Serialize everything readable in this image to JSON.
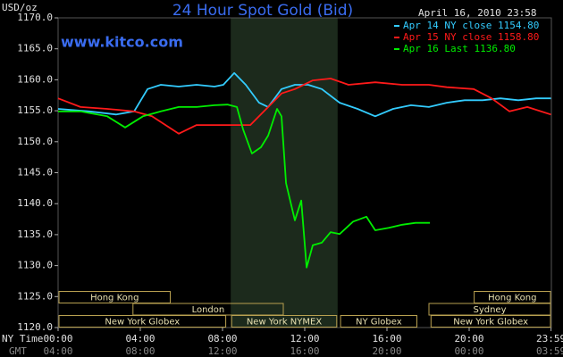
{
  "chart_data": {
    "type": "line",
    "title": "24 Hour Spot Gold (Bid)",
    "source": "www.kitco.com",
    "timestamp": "April 16, 2010 23:58",
    "y_label": "USD/oz",
    "x_label": "NY Time",
    "x2_label": "GMT",
    "xlim": [
      0,
      24
    ],
    "ylim": [
      1120,
      1170
    ],
    "xticks": [
      {
        "value": 0,
        "label": "00:00"
      },
      {
        "value": 4,
        "label": "04:00"
      },
      {
        "value": 8,
        "label": "08:00"
      },
      {
        "value": 12,
        "label": "12:00"
      },
      {
        "value": 16,
        "label": "16:00"
      },
      {
        "value": 20,
        "label": "20:00"
      },
      {
        "value": 23.983,
        "label": "23:59"
      }
    ],
    "x2tick_labels": [
      "04:00",
      "08:00",
      "12:00",
      "16:00",
      "20:00",
      "00:00",
      "03:59"
    ],
    "yticks": [
      {
        "value": 1120,
        "label": "1120.0"
      },
      {
        "value": 1125,
        "label": "1125.0"
      },
      {
        "value": 1130,
        "label": "1130.0"
      },
      {
        "value": 1135,
        "label": "1135.0"
      },
      {
        "value": 1140,
        "label": "1140.0"
      },
      {
        "value": 1145,
        "label": "1145.0"
      },
      {
        "value": 1150,
        "label": "1150.0"
      },
      {
        "value": 1155,
        "label": "1155.0"
      },
      {
        "value": 1160,
        "label": "1160.0"
      },
      {
        "value": 1165,
        "label": "1165.0"
      },
      {
        "value": 1170,
        "label": "1170.0"
      }
    ],
    "grid": false,
    "highlight_range": [
      8.4,
      13.6
    ],
    "highlight_color": "#1c2a1c",
    "legend": "top-right",
    "series": [
      {
        "name": "Apr 14 NY close 1154.80",
        "color": "#33ccff",
        "x": [
          0,
          1.52,
          2.83,
          3.7,
          4.35,
          5.0,
          5.87,
          6.74,
          7.61,
          8.04,
          8.57,
          9.13,
          9.78,
          10.22,
          10.87,
          11.52,
          12.17,
          12.83,
          13.7,
          14.57,
          15.43,
          16.3,
          17.17,
          18.04,
          18.91,
          19.78,
          20.65,
          21.52,
          22.39,
          23.26,
          23.98
        ],
        "values": [
          1155.3,
          1154.9,
          1154.4,
          1154.9,
          1158.5,
          1159.2,
          1158.9,
          1159.2,
          1158.9,
          1159.2,
          1161.1,
          1159.2,
          1156.3,
          1155.6,
          1158.5,
          1159.2,
          1159.2,
          1158.5,
          1156.3,
          1155.3,
          1154.1,
          1155.3,
          1155.9,
          1155.6,
          1156.3,
          1156.7,
          1156.7,
          1157.0,
          1156.7,
          1157.0,
          1157.0
        ]
      },
      {
        "name": "Apr 15 NY close 1158.80",
        "color": "#ff1a1a",
        "x": [
          0,
          1.09,
          2.39,
          3.7,
          4.57,
          5.87,
          6.74,
          7.61,
          8.48,
          9.35,
          10.22,
          10.87,
          11.52,
          12.39,
          13.26,
          14.13,
          15.43,
          16.74,
          18.04,
          18.91,
          20.22,
          21.09,
          21.96,
          22.83,
          23.98
        ],
        "values": [
          1157.0,
          1155.6,
          1155.3,
          1154.9,
          1154.1,
          1151.3,
          1152.7,
          1152.7,
          1152.7,
          1152.7,
          1155.6,
          1157.8,
          1158.5,
          1159.9,
          1160.2,
          1159.2,
          1159.6,
          1159.2,
          1159.2,
          1158.8,
          1158.5,
          1157.0,
          1154.9,
          1155.6,
          1154.4
        ]
      },
      {
        "name": "Apr 16 Last 1136.80",
        "color": "#00ee00",
        "x": [
          0,
          1.09,
          2.39,
          3.26,
          4.13,
          5.0,
          5.87,
          6.74,
          7.61,
          8.26,
          8.7,
          9.0,
          9.43,
          9.87,
          10.22,
          10.65,
          10.87,
          11.09,
          11.52,
          11.83,
          12.09,
          12.39,
          12.83,
          13.26,
          13.7,
          14.35,
          15.0,
          15.43,
          16.09,
          16.74,
          17.39,
          18.09
        ],
        "values": [
          1154.9,
          1154.9,
          1154.1,
          1152.3,
          1154.1,
          1154.9,
          1155.6,
          1155.6,
          1155.9,
          1156.0,
          1155.6,
          1152.0,
          1148.1,
          1149.1,
          1151.0,
          1155.3,
          1154.1,
          1143.3,
          1137.3,
          1140.5,
          1129.7,
          1133.3,
          1133.7,
          1135.4,
          1135.1,
          1137.1,
          1137.9,
          1135.7,
          1136.1,
          1136.6,
          1136.9,
          1136.9
        ]
      }
    ],
    "session_color": "#b8a050",
    "session_rows": [
      [
        {
          "name": "Hong Kong",
          "start": 0,
          "end": 5.5
        },
        {
          "name": "Hong Kong",
          "start": 20.2,
          "end": 24
        }
      ],
      [
        {
          "name": "London",
          "start": 3.6,
          "end": 11.0
        },
        {
          "name": "Sydney",
          "start": 18.0,
          "end": 24
        }
      ],
      [
        {
          "name": "New York Globex",
          "start": 0,
          "end": 8.2
        },
        {
          "name": "New York NYMEX",
          "start": 8.4,
          "end": 13.6
        },
        {
          "name": "NY Globex",
          "start": 13.7,
          "end": 17.5
        },
        {
          "name": "New York Globex",
          "start": 18.1,
          "end": 24
        }
      ]
    ]
  }
}
